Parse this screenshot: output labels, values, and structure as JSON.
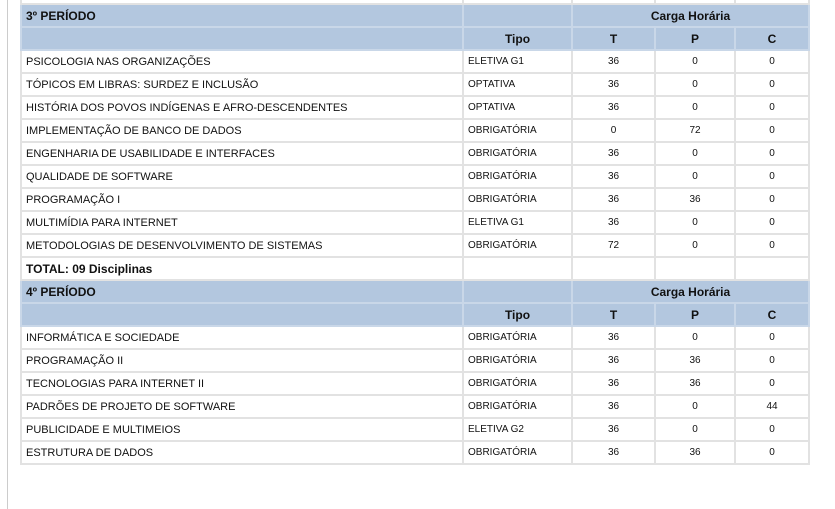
{
  "headers": {
    "carga": "Carga Horária",
    "tipo": "Tipo",
    "t": "T",
    "p": "P",
    "c": "C"
  },
  "periods": [
    {
      "title": "3º PERÍODO",
      "rows": [
        [
          "PSICOLOGIA NAS ORGANIZAÇÕES",
          "ELETIVA G1",
          "36",
          "0",
          "0"
        ],
        [
          "TÓPICOS EM LIBRAS: SURDEZ E INCLUSÃO",
          "OPTATIVA",
          "36",
          "0",
          "0"
        ],
        [
          "HISTÓRIA DOS POVOS INDÍGENAS E AFRO-DESCENDENTES",
          "OPTATIVA",
          "36",
          "0",
          "0"
        ],
        [
          "IMPLEMENTAÇÃO DE BANCO DE DADOS",
          "OBRIGATÓRIA",
          "0",
          "72",
          "0"
        ],
        [
          "ENGENHARIA DE USABILIDADE E INTERFACES",
          "OBRIGATÓRIA",
          "36",
          "0",
          "0"
        ],
        [
          "QUALIDADE DE SOFTWARE",
          "OBRIGATÓRIA",
          "36",
          "0",
          "0"
        ],
        [
          "PROGRAMAÇÃO I",
          "OBRIGATÓRIA",
          "36",
          "36",
          "0"
        ],
        [
          "MULTIMÍDIA PARA INTERNET",
          "ELETIVA G1",
          "36",
          "0",
          "0"
        ],
        [
          "METODOLOGIAS DE DESENVOLVIMENTO DE SISTEMAS",
          "OBRIGATÓRIA",
          "72",
          "0",
          "0"
        ]
      ],
      "total": "TOTAL: 09 Disciplinas"
    },
    {
      "title": "4º PERÍODO",
      "rows": [
        [
          "INFORMÁTICA E SOCIEDADE",
          "OBRIGATÓRIA",
          "36",
          "0",
          "0"
        ],
        [
          "PROGRAMAÇÃO II",
          "OBRIGATÓRIA",
          "36",
          "36",
          "0"
        ],
        [
          "TECNOLOGIAS PARA INTERNET II",
          "OBRIGATÓRIA",
          "36",
          "36",
          "0"
        ],
        [
          "PADRÕES DE PROJETO DE SOFTWARE",
          "OBRIGATÓRIA",
          "36",
          "0",
          "44"
        ],
        [
          "PUBLICIDADE E MULTIMEIOS",
          "ELETIVA G2",
          "36",
          "0",
          "0"
        ],
        [
          "ESTRUTURA DE DADOS",
          "OBRIGATÓRIA",
          "36",
          "36",
          "0"
        ]
      ]
    }
  ]
}
